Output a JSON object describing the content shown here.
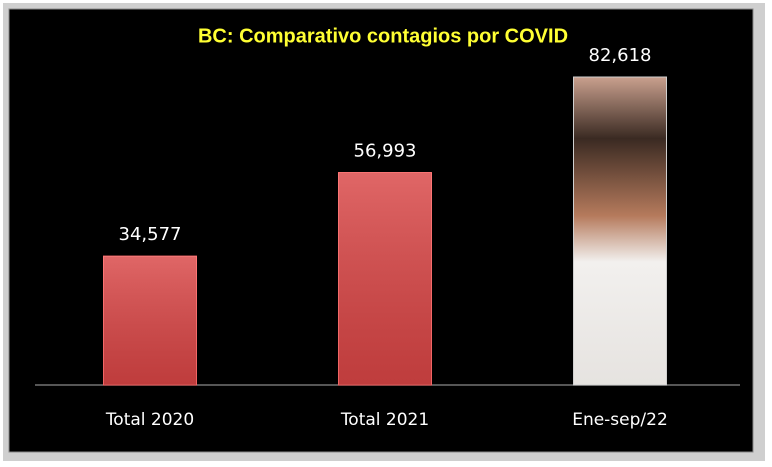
{
  "chart_data": {
    "type": "bar",
    "title": "BC: Comparativo contagios por COVID",
    "categories": [
      "Total 2020",
      "Total 2021",
      "Ene-sep/22"
    ],
    "values": [
      34577,
      56993,
      82618
    ],
    "value_labels": [
      "34,577",
      "56,993",
      "82,618"
    ],
    "color": "#d94545"
  }
}
